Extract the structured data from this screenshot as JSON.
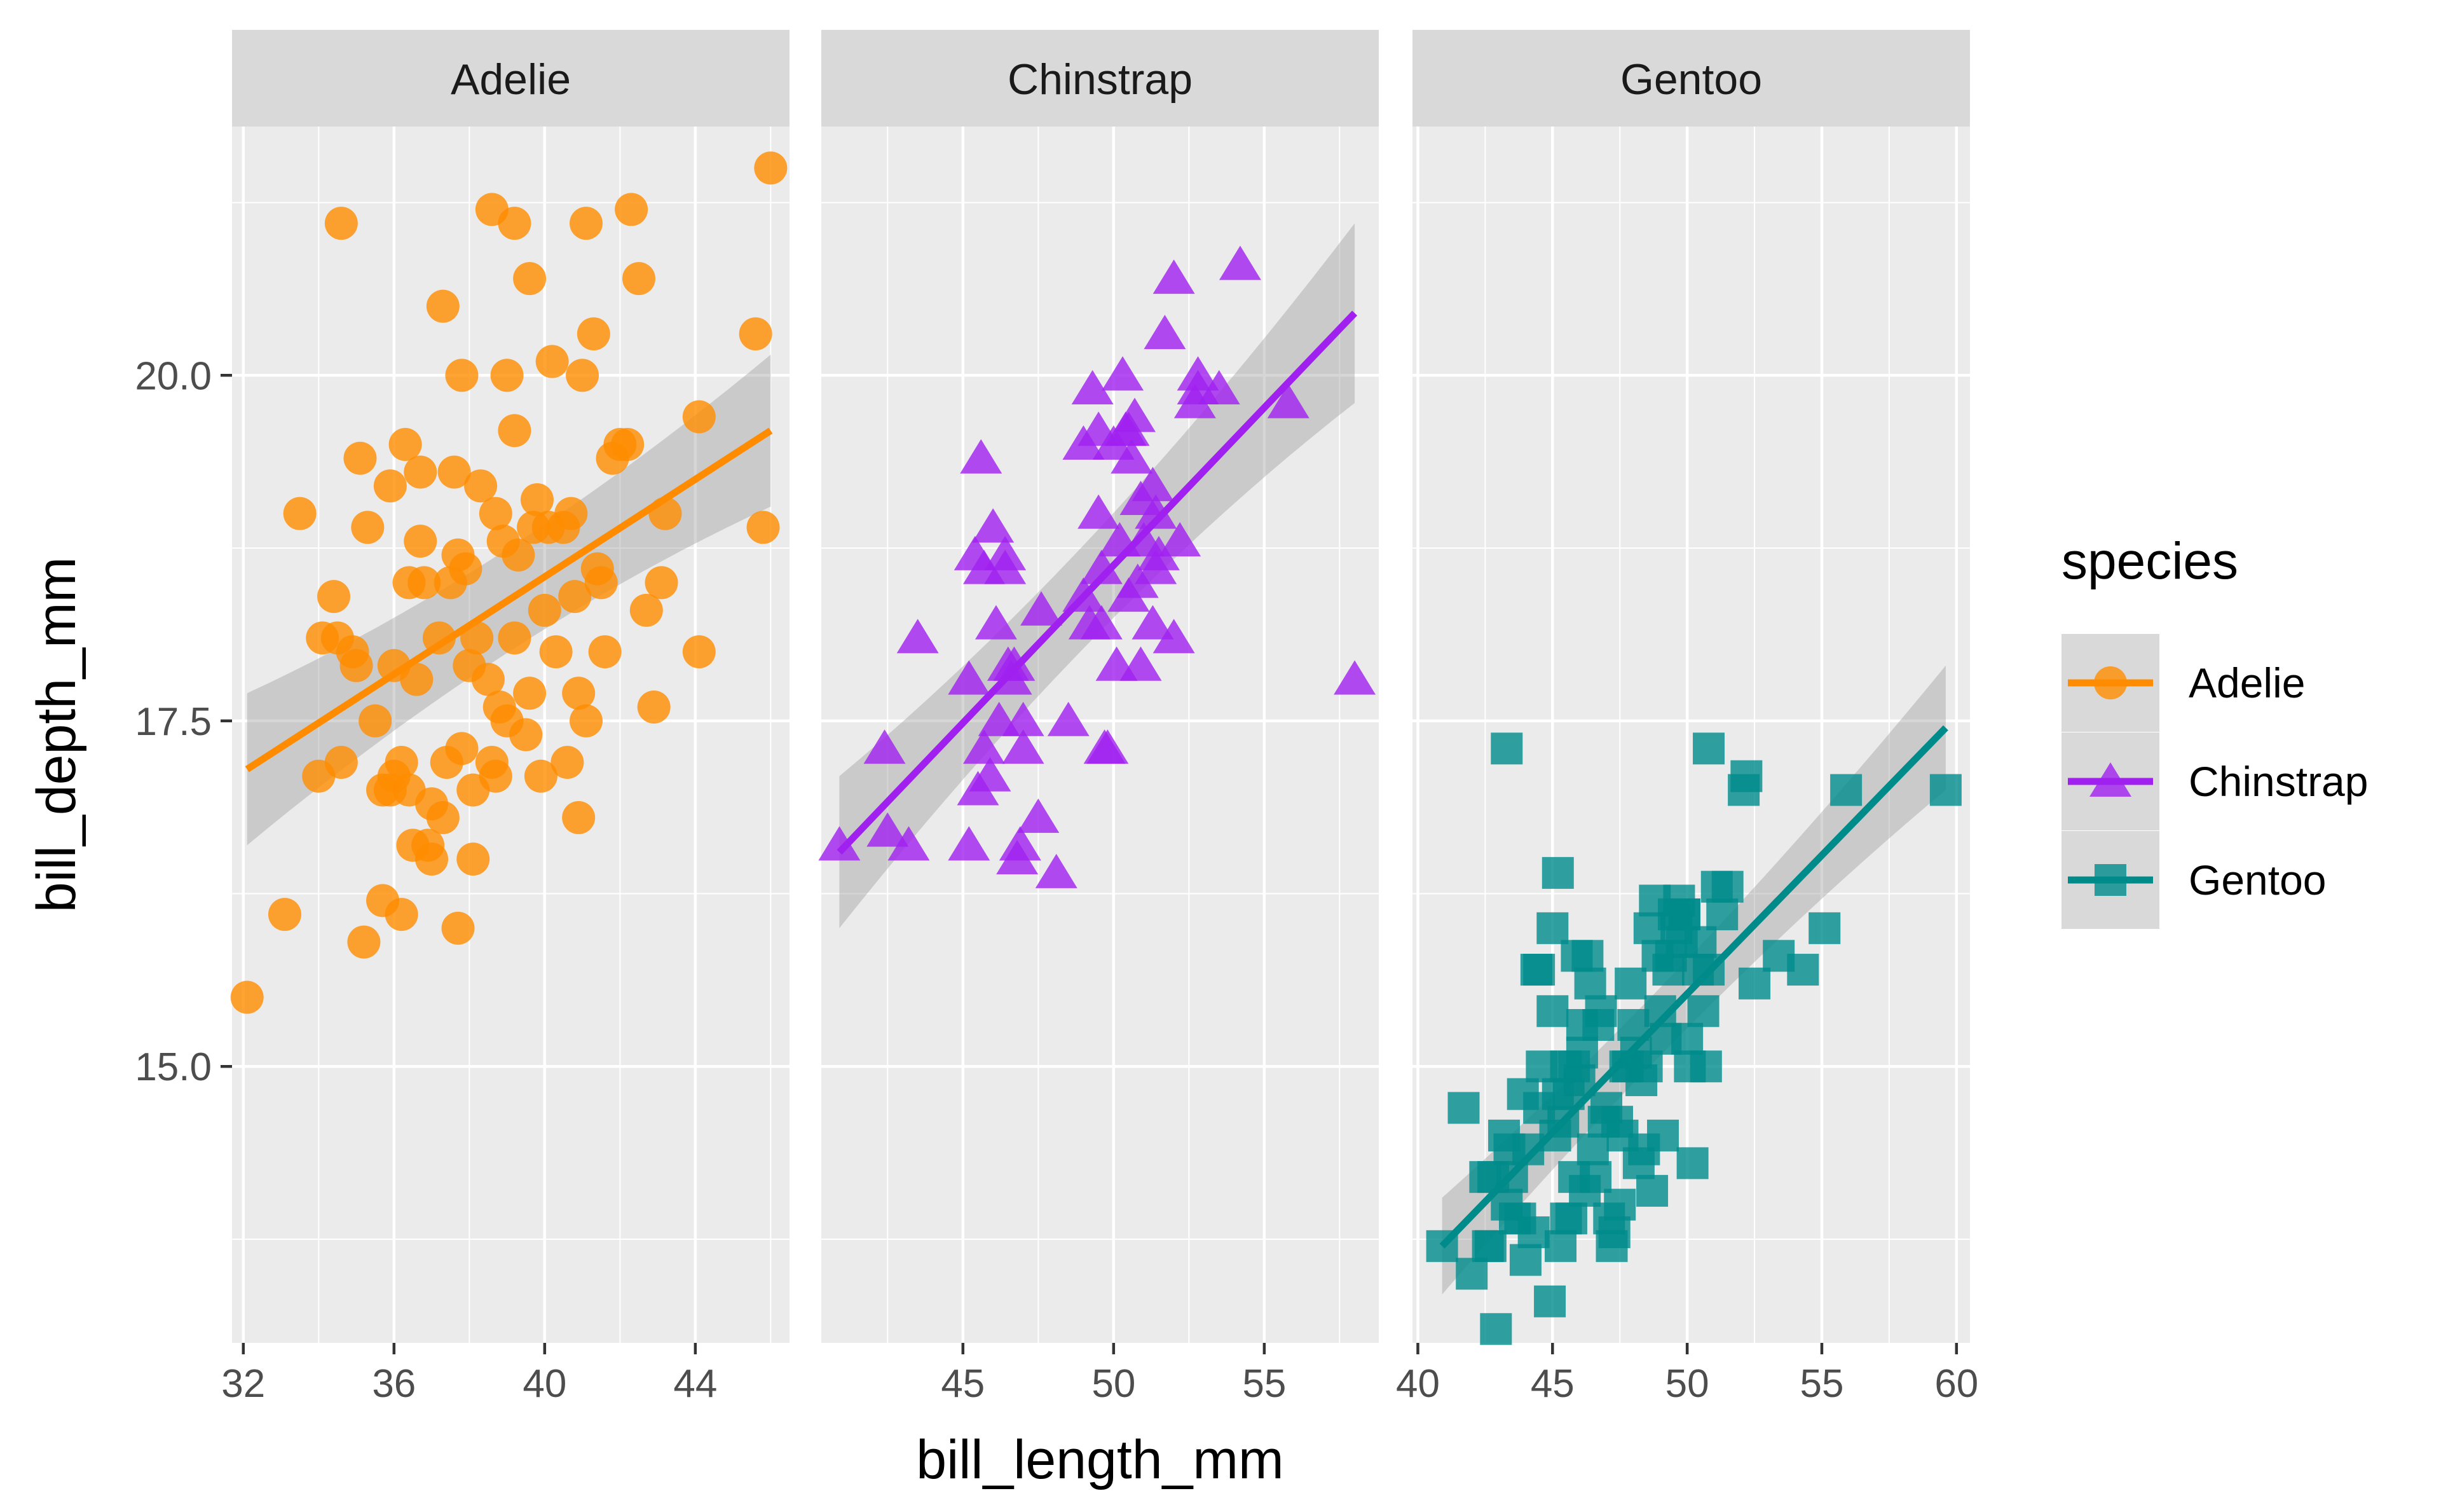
{
  "chart_data": {
    "type": "scatter",
    "facet_by": "species",
    "x_label": "bill_length_mm",
    "y_label": "bill_depth_mm",
    "y_range": [
      13.0,
      21.8
    ],
    "y_ticks": [
      15.0,
      17.5,
      20.0
    ],
    "y_tick_labels": [
      "15.0",
      "17.5",
      "20.0"
    ],
    "legend": {
      "title": "species",
      "position": "right",
      "entries": [
        {
          "label": "Adelie",
          "color": "#FF8C00",
          "shape": "circle"
        },
        {
          "label": "Chinstrap",
          "color": "#A020F0",
          "shape": "triangle"
        },
        {
          "label": "Gentoo",
          "color": "#008B8B",
          "shape": "square"
        }
      ]
    },
    "panels": [
      {
        "species": "Adelie",
        "strip_label": "Adelie",
        "color": "#FF8C00",
        "shape": "circle",
        "x_range": [
          31.7,
          46.5
        ],
        "x_ticks": [
          32,
          36,
          40,
          44
        ],
        "x_tick_labels": [
          "32",
          "36",
          "40",
          "44"
        ],
        "fit": {
          "x": [
            32.1,
            46.0
          ],
          "y": [
            17.15,
            19.6
          ],
          "band_start": 0.55,
          "band_mid": 0.2,
          "band_end": 0.55
        },
        "points": [
          [
            32.1,
            15.5
          ],
          [
            33.1,
            16.1
          ],
          [
            33.5,
            19.0
          ],
          [
            34.0,
            17.1
          ],
          [
            34.1,
            18.1
          ],
          [
            34.4,
            18.4
          ],
          [
            34.5,
            18.1
          ],
          [
            34.6,
            21.1
          ],
          [
            34.6,
            17.2
          ],
          [
            35.0,
            17.9
          ],
          [
            35.1,
            19.4
          ],
          [
            35.2,
            15.9
          ],
          [
            35.3,
            18.9
          ],
          [
            35.5,
            17.5
          ],
          [
            35.7,
            16.2
          ],
          [
            35.9,
            19.2
          ],
          [
            35.9,
            17.0
          ],
          [
            36.0,
            17.9
          ],
          [
            36.0,
            17.1
          ],
          [
            36.2,
            16.1
          ],
          [
            36.2,
            17.2
          ],
          [
            36.4,
            17.0
          ],
          [
            36.5,
            16.6
          ],
          [
            36.6,
            17.8
          ],
          [
            36.7,
            18.8
          ],
          [
            36.7,
            19.3
          ],
          [
            36.9,
            16.6
          ],
          [
            37.0,
            16.9
          ],
          [
            37.2,
            18.1
          ],
          [
            37.3,
            20.5
          ],
          [
            37.3,
            16.8
          ],
          [
            37.6,
            19.3
          ],
          [
            37.7,
            18.7
          ],
          [
            37.7,
            16.0
          ],
          [
            37.8,
            17.3
          ],
          [
            37.8,
            20.0
          ],
          [
            37.9,
            18.6
          ],
          [
            38.1,
            17.0
          ],
          [
            38.2,
            18.1
          ],
          [
            38.6,
            21.2
          ],
          [
            38.6,
            17.2
          ],
          [
            38.7,
            19.0
          ],
          [
            38.8,
            17.6
          ],
          [
            38.9,
            18.8
          ],
          [
            39.0,
            17.5
          ],
          [
            39.0,
            20.0
          ],
          [
            39.2,
            19.6
          ],
          [
            39.2,
            21.1
          ],
          [
            39.5,
            17.4
          ],
          [
            39.6,
            20.7
          ],
          [
            39.6,
            17.7
          ],
          [
            39.7,
            18.9
          ],
          [
            39.8,
            19.1
          ],
          [
            40.1,
            18.9
          ],
          [
            40.2,
            20.1
          ],
          [
            40.3,
            18.0
          ],
          [
            40.6,
            17.2
          ],
          [
            40.8,
            18.4
          ],
          [
            40.9,
            16.8
          ],
          [
            41.0,
            20.0
          ],
          [
            41.1,
            21.1
          ],
          [
            41.1,
            17.5
          ],
          [
            41.3,
            20.3
          ],
          [
            41.5,
            18.5
          ],
          [
            41.6,
            18.0
          ],
          [
            42.0,
            19.5
          ],
          [
            42.2,
            19.5
          ],
          [
            42.3,
            21.2
          ],
          [
            42.5,
            20.7
          ],
          [
            42.7,
            18.3
          ],
          [
            43.1,
            18.5
          ],
          [
            43.2,
            19.0
          ],
          [
            44.1,
            18.0
          ],
          [
            44.1,
            19.7
          ],
          [
            45.8,
            18.9
          ],
          [
            45.6,
            20.3
          ],
          [
            46.0,
            21.5
          ],
          [
            37.5,
            18.5
          ],
          [
            38.0,
            17.9
          ],
          [
            39.3,
            18.7
          ],
          [
            36.8,
            18.5
          ],
          [
            40.5,
            18.9
          ],
          [
            41.4,
            18.6
          ],
          [
            38.3,
            19.2
          ],
          [
            39.9,
            17.1
          ],
          [
            37.0,
            16.5
          ],
          [
            35.7,
            17.0
          ],
          [
            36.3,
            19.5
          ],
          [
            41.8,
            19.4
          ],
          [
            38.5,
            17.8
          ],
          [
            40.0,
            18.3
          ],
          [
            37.4,
            17.2
          ],
          [
            42.9,
            17.6
          ],
          [
            39.2,
            18.1
          ],
          [
            40.7,
            19.0
          ],
          [
            34.9,
            18.0
          ],
          [
            36.4,
            18.5
          ],
          [
            38.1,
            16.5
          ],
          [
            40.9,
            17.7
          ],
          [
            38.7,
            17.1
          ]
        ]
      },
      {
        "species": "Chinstrap",
        "strip_label": "Chinstrap",
        "color": "#A020F0",
        "shape": "triangle",
        "x_range": [
          40.3,
          58.8
        ],
        "x_ticks": [
          45,
          50,
          55
        ],
        "x_tick_labels": [
          "45",
          "50",
          "55"
        ],
        "fit": {
          "x": [
            40.9,
            58.0
          ],
          "y": [
            16.55,
            20.45
          ],
          "band_start": 0.55,
          "band_mid": 0.15,
          "band_end": 0.65
        },
        "points": [
          [
            40.9,
            16.6
          ],
          [
            42.4,
            17.3
          ],
          [
            42.5,
            16.7
          ],
          [
            43.2,
            16.6
          ],
          [
            43.5,
            18.1
          ],
          [
            45.2,
            16.6
          ],
          [
            45.4,
            18.7
          ],
          [
            45.5,
            17.0
          ],
          [
            45.6,
            19.4
          ],
          [
            45.7,
            17.3
          ],
          [
            45.9,
            17.1
          ],
          [
            46.0,
            18.9
          ],
          [
            46.1,
            18.2
          ],
          [
            46.2,
            17.5
          ],
          [
            46.4,
            18.6
          ],
          [
            46.5,
            17.9
          ],
          [
            46.6,
            17.8
          ],
          [
            46.7,
            17.9
          ],
          [
            46.8,
            16.5
          ],
          [
            46.9,
            16.6
          ],
          [
            47.0,
            17.3
          ],
          [
            47.5,
            16.8
          ],
          [
            47.6,
            18.3
          ],
          [
            48.1,
            16.4
          ],
          [
            48.5,
            17.5
          ],
          [
            49.0,
            19.5
          ],
          [
            49.2,
            18.2
          ],
          [
            49.3,
            19.9
          ],
          [
            49.5,
            19.0
          ],
          [
            49.6,
            18.2
          ],
          [
            49.7,
            17.3
          ],
          [
            49.8,
            17.3
          ],
          [
            50.0,
            19.5
          ],
          [
            50.1,
            17.9
          ],
          [
            50.2,
            18.8
          ],
          [
            50.3,
            20.0
          ],
          [
            50.5,
            18.4
          ],
          [
            50.6,
            19.4
          ],
          [
            50.7,
            19.7
          ],
          [
            50.8,
            18.5
          ],
          [
            50.9,
            17.9
          ],
          [
            51.0,
            18.8
          ],
          [
            51.3,
            18.2
          ],
          [
            51.3,
            19.2
          ],
          [
            51.4,
            19.0
          ],
          [
            51.5,
            18.7
          ],
          [
            51.7,
            20.3
          ],
          [
            52.0,
            18.1
          ],
          [
            52.0,
            20.7
          ],
          [
            52.2,
            18.8
          ],
          [
            52.7,
            19.8
          ],
          [
            52.8,
            20.0
          ],
          [
            53.5,
            19.9
          ],
          [
            54.2,
            20.8
          ],
          [
            55.8,
            19.8
          ],
          [
            58.0,
            17.8
          ],
          [
            49.5,
            19.6
          ],
          [
            50.4,
            19.6
          ],
          [
            51.4,
            18.6
          ],
          [
            49.0,
            18.4
          ],
          [
            45.2,
            17.8
          ],
          [
            46.4,
            18.7
          ],
          [
            47.0,
            17.5
          ],
          [
            50.5,
            19.6
          ],
          [
            45.7,
            18.6
          ],
          [
            49.6,
            18.6
          ],
          [
            50.9,
            19.1
          ],
          [
            52.8,
            19.9
          ]
        ]
      },
      {
        "species": "Gentoo",
        "strip_label": "Gentoo",
        "color": "#008B8B",
        "shape": "square",
        "x_range": [
          39.8,
          60.5
        ],
        "x_ticks": [
          40,
          45,
          50,
          55,
          60
        ],
        "x_tick_labels": [
          "40",
          "45",
          "50",
          "55",
          "60"
        ],
        "fit": {
          "x": [
            40.9,
            59.6
          ],
          "y": [
            13.7,
            17.45
          ],
          "band_start": 0.35,
          "band_mid": 0.1,
          "band_end": 0.45
        },
        "points": [
          [
            40.9,
            13.7
          ],
          [
            41.7,
            14.7
          ],
          [
            42.0,
            13.5
          ],
          [
            42.5,
            14.2
          ],
          [
            42.6,
            13.7
          ],
          [
            42.7,
            13.7
          ],
          [
            42.8,
            14.2
          ],
          [
            42.9,
            13.1
          ],
          [
            43.2,
            14.5
          ],
          [
            43.3,
            14.0
          ],
          [
            43.4,
            14.4
          ],
          [
            43.5,
            14.2
          ],
          [
            43.6,
            13.9
          ],
          [
            43.8,
            13.9
          ],
          [
            44.0,
            13.6
          ],
          [
            44.4,
            15.7
          ],
          [
            44.5,
            14.7
          ],
          [
            44.5,
            15.7
          ],
          [
            44.9,
            13.3
          ],
          [
            45.0,
            15.4
          ],
          [
            45.1,
            14.5
          ],
          [
            45.2,
            14.8
          ],
          [
            45.2,
            16.4
          ],
          [
            45.3,
            13.7
          ],
          [
            45.4,
            14.6
          ],
          [
            45.5,
            13.9
          ],
          [
            45.5,
            15.0
          ],
          [
            45.7,
            13.9
          ],
          [
            45.8,
            14.2
          ],
          [
            45.9,
            15.8
          ],
          [
            46.1,
            15.1
          ],
          [
            46.2,
            14.1
          ],
          [
            46.4,
            15.6
          ],
          [
            46.5,
            14.4
          ],
          [
            46.6,
            14.2
          ],
          [
            46.8,
            15.4
          ],
          [
            46.9,
            14.6
          ],
          [
            47.2,
            13.7
          ],
          [
            47.3,
            13.8
          ],
          [
            47.4,
            14.6
          ],
          [
            47.5,
            14.0
          ],
          [
            47.6,
            14.5
          ],
          [
            47.7,
            15.0
          ],
          [
            47.8,
            15.0
          ],
          [
            48.1,
            15.1
          ],
          [
            48.2,
            14.3
          ],
          [
            48.4,
            14.4
          ],
          [
            48.5,
            15.0
          ],
          [
            48.6,
            16.0
          ],
          [
            48.7,
            14.1
          ],
          [
            48.8,
            16.2
          ],
          [
            49.0,
            15.4
          ],
          [
            49.1,
            14.5
          ],
          [
            49.2,
            15.2
          ],
          [
            49.3,
            15.7
          ],
          [
            49.4,
            15.8
          ],
          [
            49.5,
            16.1
          ],
          [
            49.6,
            16.0
          ],
          [
            49.8,
            15.9
          ],
          [
            49.9,
            16.1
          ],
          [
            50.0,
            15.2
          ],
          [
            50.1,
            15.0
          ],
          [
            50.2,
            14.3
          ],
          [
            50.4,
            15.7
          ],
          [
            50.5,
            15.9
          ],
          [
            50.7,
            15.0
          ],
          [
            50.8,
            15.7
          ],
          [
            50.8,
            17.3
          ],
          [
            51.1,
            16.3
          ],
          [
            51.3,
            16.1
          ],
          [
            51.5,
            16.3
          ],
          [
            52.1,
            17.0
          ],
          [
            52.2,
            17.1
          ],
          [
            53.4,
            15.8
          ],
          [
            54.3,
            15.7
          ],
          [
            55.1,
            16.0
          ],
          [
            55.9,
            17.0
          ],
          [
            59.6,
            17.0
          ],
          [
            43.3,
            17.3
          ],
          [
            52.5,
            15.6
          ],
          [
            44.1,
            14.4
          ],
          [
            46.3,
            15.8
          ],
          [
            47.0,
            14.7
          ],
          [
            48.0,
            15.3
          ],
          [
            45.0,
            16.0
          ],
          [
            49.9,
            16.1
          ],
          [
            48.3,
            14.9
          ],
          [
            44.6,
            15.0
          ],
          [
            46.7,
            15.3
          ],
          [
            47.9,
            15.6
          ],
          [
            46.0,
            14.9
          ],
          [
            49.7,
            16.2
          ],
          [
            50.6,
            15.4
          ],
          [
            45.6,
            14.8
          ],
          [
            43.9,
            14.8
          ],
          [
            47.1,
            13.9
          ],
          [
            48.9,
            15.8
          ],
          [
            44.3,
            13.8
          ],
          [
            46.1,
            15.3
          ],
          [
            45.8,
            15.0
          ]
        ]
      }
    ]
  }
}
